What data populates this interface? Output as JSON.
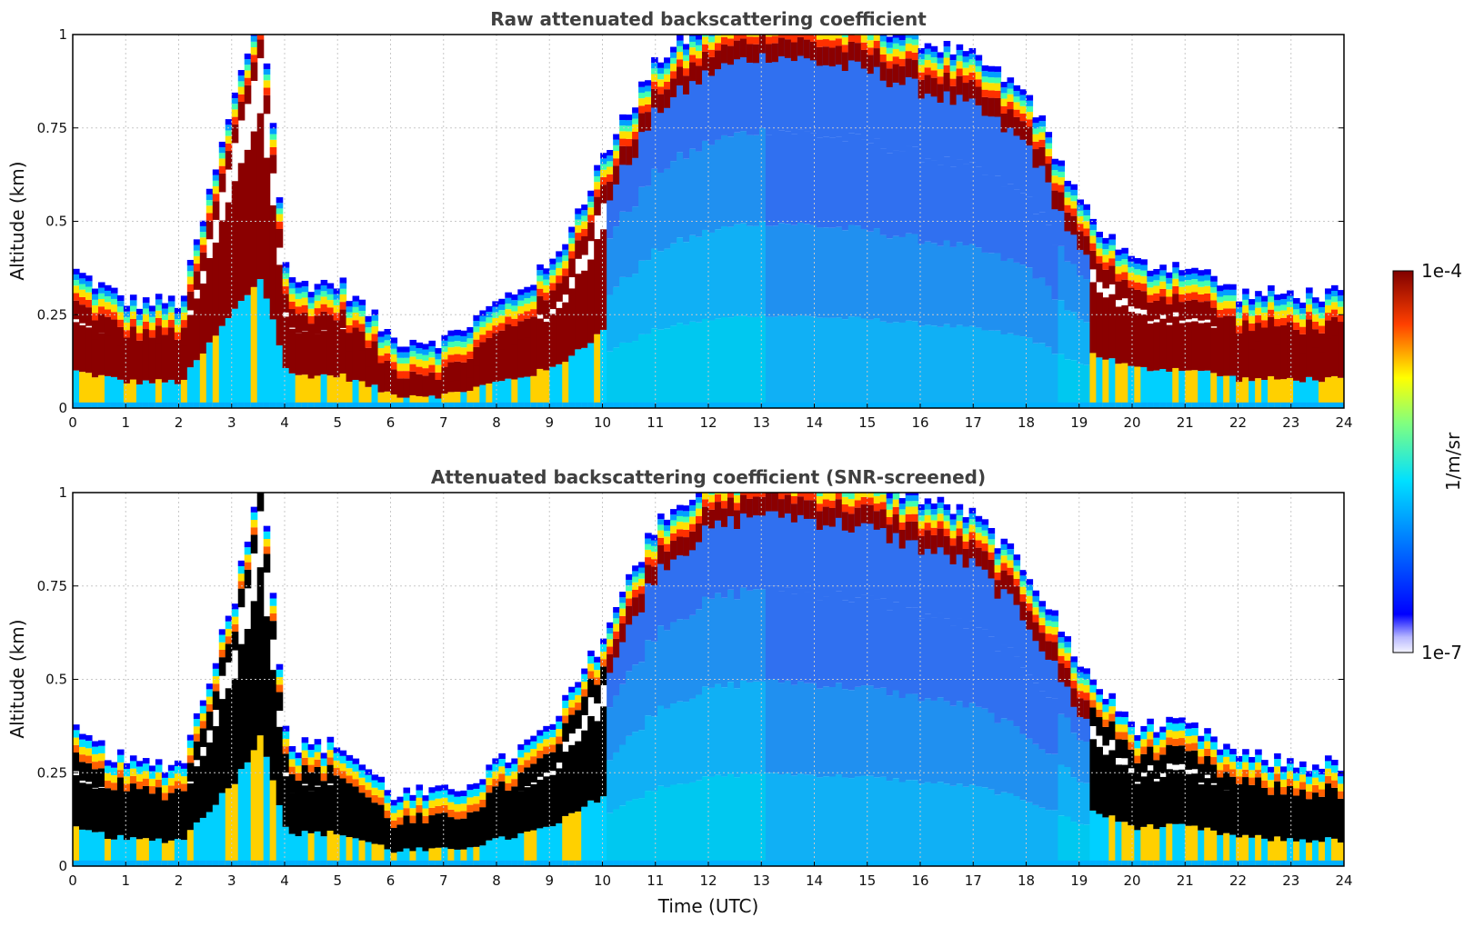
{
  "chart_data": [
    {
      "type": "heatmap",
      "title": "Raw attenuated backscattering coefficient",
      "xlabel": "",
      "ylabel": "Altitude (km)",
      "xlim": [
        0,
        24
      ],
      "ylim": [
        0,
        1
      ],
      "x_ticks": [
        "0",
        "1",
        "2",
        "3",
        "4",
        "5",
        "6",
        "7",
        "8",
        "9",
        "10",
        "11",
        "12",
        "13",
        "14",
        "15",
        "16",
        "17",
        "18",
        "19",
        "20",
        "21",
        "22",
        "23",
        "24"
      ],
      "y_ticks": [
        "0",
        "0.25",
        "0.5",
        "0.75",
        "1"
      ],
      "grid": true,
      "colorscale": "jet",
      "cloud_base_km": [
        [
          0,
          0.28
        ],
        [
          1,
          0.2
        ],
        [
          2,
          0.2
        ],
        [
          3,
          0.75
        ],
        [
          3.5,
          1.0
        ],
        [
          4,
          0.25
        ],
        [
          5,
          0.25
        ],
        [
          6,
          0.1
        ],
        [
          7,
          0.1
        ],
        [
          8,
          0.2
        ],
        [
          9,
          0.3
        ],
        [
          10,
          0.6
        ],
        [
          11,
          0.85
        ],
        [
          12,
          0.95
        ],
        [
          13,
          1.0
        ],
        [
          15,
          0.95
        ],
        [
          17,
          0.85
        ],
        [
          18,
          0.75
        ],
        [
          19,
          0.45
        ],
        [
          20,
          0.3
        ],
        [
          21,
          0.3
        ],
        [
          22,
          0.22
        ],
        [
          23,
          0.22
        ],
        [
          24,
          0.22
        ]
      ]
    },
    {
      "type": "heatmap",
      "title": "Attenuated backscattering coefficient (SNR-screened)",
      "xlabel": "Time (UTC)",
      "ylabel": "Altitude (km)",
      "xlim": [
        0,
        24
      ],
      "ylim": [
        0,
        1
      ],
      "x_ticks": [
        "0",
        "1",
        "2",
        "3",
        "4",
        "5",
        "6",
        "7",
        "8",
        "9",
        "10",
        "11",
        "12",
        "13",
        "14",
        "15",
        "16",
        "17",
        "18",
        "19",
        "20",
        "21",
        "22",
        "23",
        "24"
      ],
      "y_ticks": [
        "0",
        "0.25",
        "0.5",
        "0.75",
        "1"
      ],
      "grid": true,
      "colorscale": "jet",
      "cloud_base_km": [
        [
          0,
          0.28
        ],
        [
          1,
          0.2
        ],
        [
          2,
          0.2
        ],
        [
          3,
          0.65
        ],
        [
          3.5,
          1.0
        ],
        [
          4,
          0.25
        ],
        [
          5,
          0.25
        ],
        [
          6,
          0.12
        ],
        [
          7,
          0.12
        ],
        [
          8,
          0.2
        ],
        [
          9,
          0.3
        ],
        [
          10,
          0.55
        ],
        [
          11,
          0.85
        ],
        [
          12,
          0.95
        ],
        [
          13,
          1.0
        ],
        [
          15,
          0.95
        ],
        [
          17,
          0.85
        ],
        [
          18,
          0.7
        ],
        [
          19,
          0.45
        ],
        [
          20,
          0.3
        ],
        [
          21,
          0.3
        ],
        [
          22,
          0.22
        ],
        [
          23,
          0.2
        ],
        [
          24,
          0.2
        ]
      ]
    }
  ],
  "colorbar": {
    "max_label": "1e-4",
    "min_label": "1e-7",
    "unit_label": "1/m/sr",
    "scale": "log"
  },
  "colors": {
    "title": "#404040",
    "grid": "#c8c8c8"
  }
}
